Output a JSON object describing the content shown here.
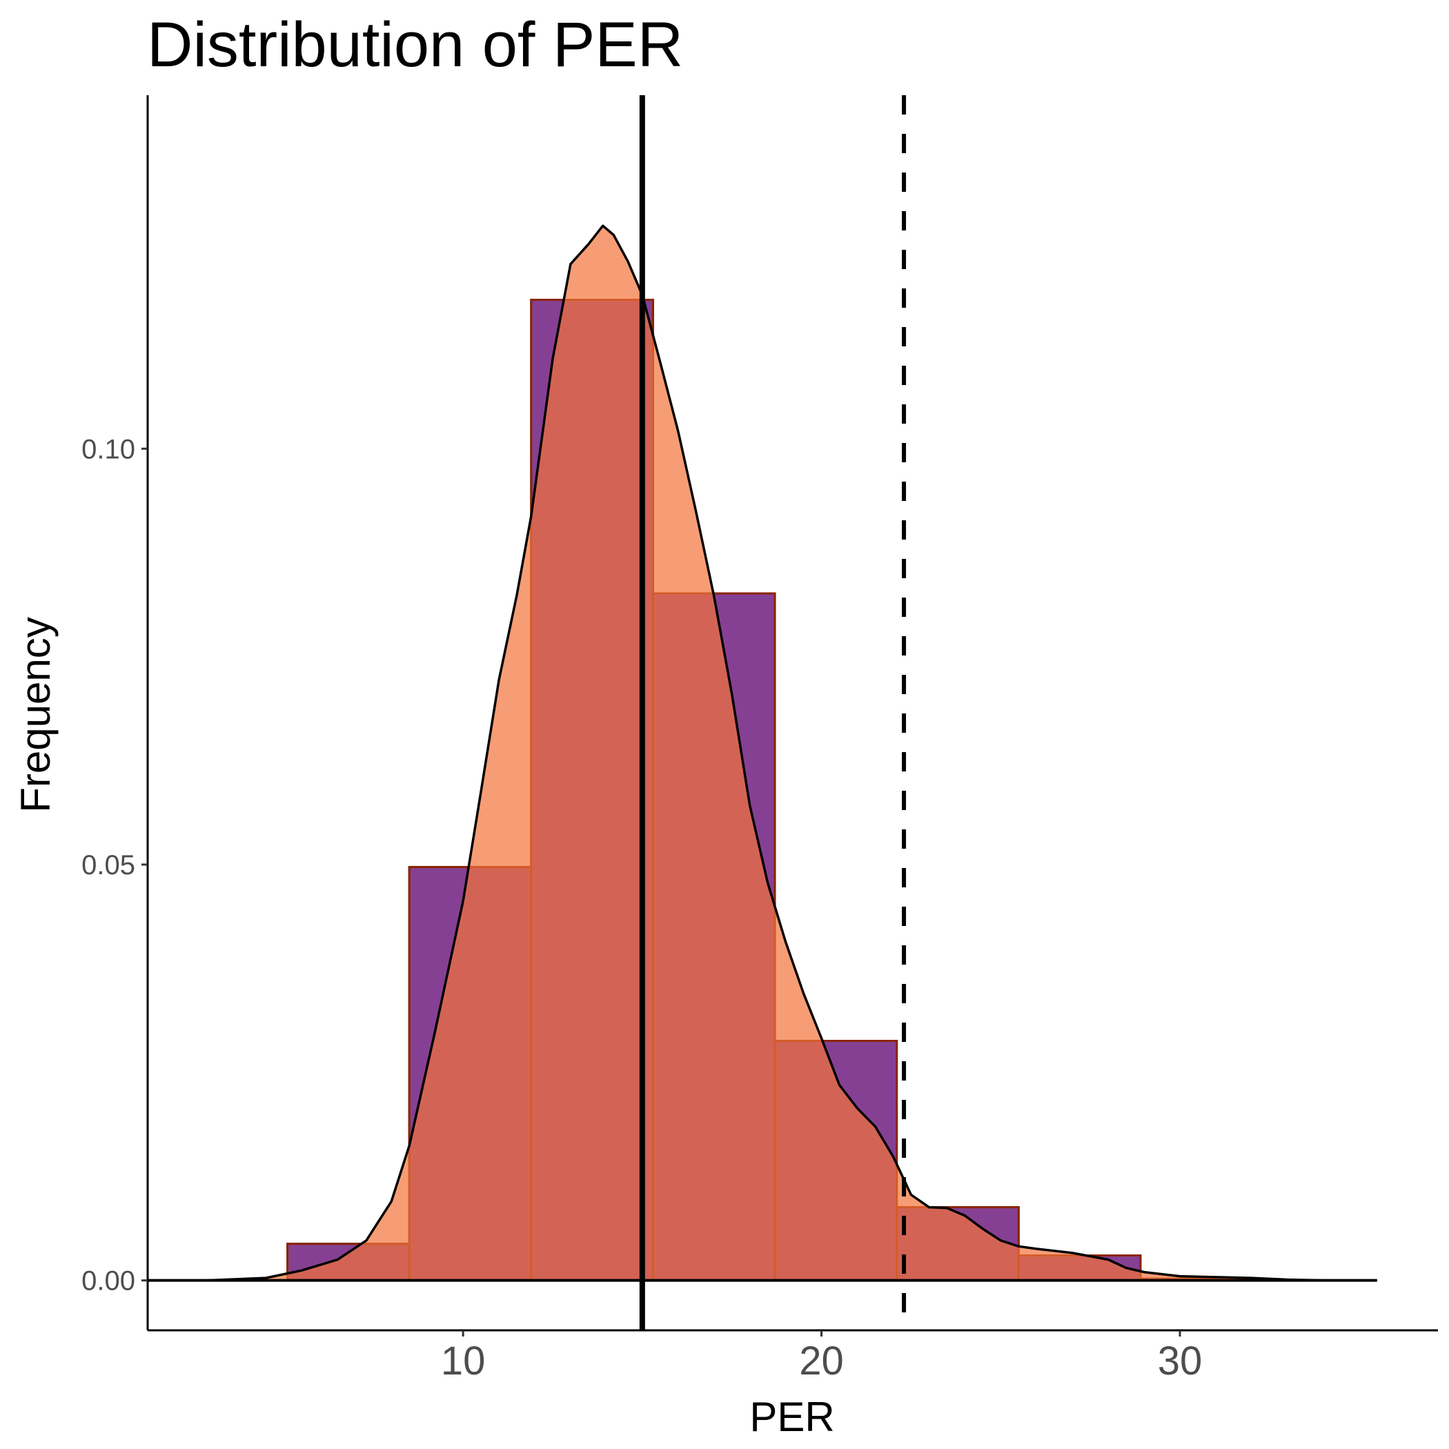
{
  "chart_data": {
    "type": "bar",
    "title": "Distribution of PER",
    "xlabel": "PER",
    "ylabel": "Frequency",
    "xlim": [
      1.2,
      37.2
    ],
    "ylim": [
      -0.006,
      0.1425
    ],
    "x_ticks": [
      10,
      20,
      30
    ],
    "x_tick_labels": [
      "10",
      "20",
      "30"
    ],
    "y_ticks": [
      0.0,
      0.05,
      0.1
    ],
    "y_tick_labels": [
      "0.00",
      "0.05",
      "0.10"
    ],
    "grid": false,
    "legend": "none",
    "histogram": {
      "fill": "#0000ff",
      "edges": [
        5.1,
        8.5,
        11.9,
        15.3,
        18.7,
        22.1,
        25.5,
        28.9,
        32.3
      ],
      "values": [
        0.0044,
        0.0497,
        0.1179,
        0.0826,
        0.0288,
        0.0088,
        0.003,
        0.0002
      ]
    },
    "overlay_histogram": {
      "fill": "#f4743b",
      "edges": [
        5.1,
        8.5,
        11.9,
        15.3,
        18.7,
        22.1,
        25.5,
        28.9,
        32.3
      ],
      "values": [
        0.0044,
        0.0497,
        0.1179,
        0.0826,
        0.0288,
        0.0088,
        0.003,
        0.0002
      ]
    },
    "density_curve": {
      "x": [
        2.8,
        4.5,
        5.5,
        6.5,
        7.3,
        8.0,
        8.5,
        9.2,
        10.0,
        10.5,
        11.0,
        11.5,
        11.9,
        12.5,
        13.0,
        13.5,
        13.9,
        14.2,
        14.6,
        15.0,
        15.5,
        16.0,
        16.5,
        17.0,
        17.5,
        18.0,
        18.5,
        19.0,
        19.5,
        20.0,
        20.5,
        21.0,
        21.5,
        22.0,
        22.5,
        23.0,
        23.5,
        24.0,
        24.5,
        25.0,
        25.5,
        26.0,
        27.0,
        28.0,
        28.5,
        29.0,
        30.0,
        31.0,
        32.0,
        33.0,
        34.0,
        35.5
      ],
      "y": [
        0.0,
        0.0003,
        0.0012,
        0.0025,
        0.0048,
        0.0095,
        0.0162,
        0.0296,
        0.0456,
        0.0588,
        0.0722,
        0.0824,
        0.0919,
        0.1108,
        0.1222,
        0.1246,
        0.1268,
        0.1257,
        0.1225,
        0.1185,
        0.1104,
        0.1021,
        0.0924,
        0.0823,
        0.0705,
        0.0571,
        0.0478,
        0.0407,
        0.0345,
        0.0291,
        0.0235,
        0.0207,
        0.0185,
        0.0149,
        0.0103,
        0.0088,
        0.0087,
        0.0078,
        0.0062,
        0.0048,
        0.0041,
        0.0038,
        0.0033,
        0.0025,
        0.0015,
        0.001,
        0.0005,
        0.0004,
        0.0003,
        0.0001,
        0.0,
        0.0
      ]
    },
    "baseline": {
      "from": 1.2,
      "to": 35.5,
      "value": 0.0
    },
    "reference_lines": [
      {
        "x": 15.0,
        "style": "solid"
      },
      {
        "x": 22.3,
        "style": "dashed"
      }
    ]
  }
}
